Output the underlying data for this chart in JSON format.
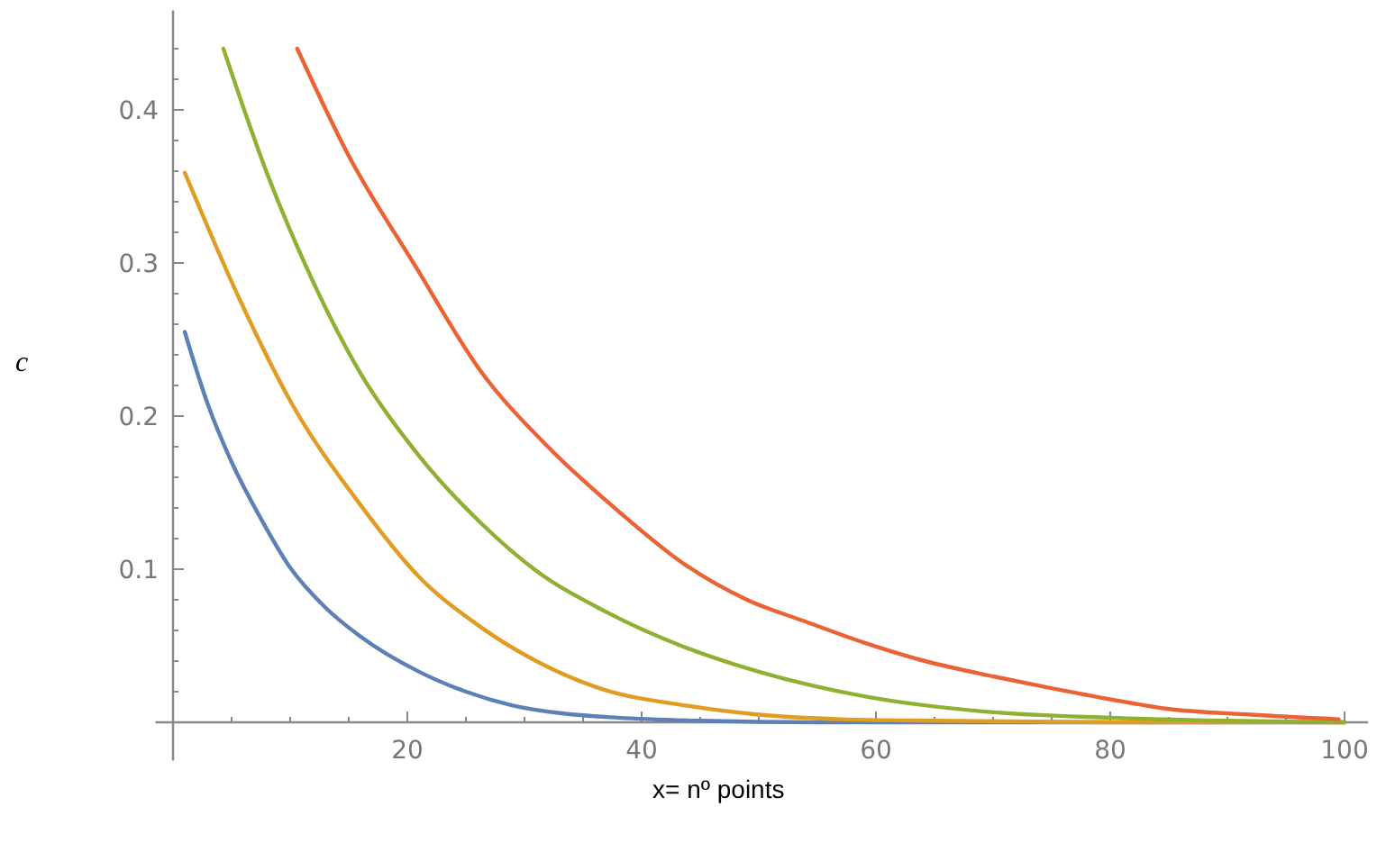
{
  "chart_data": {
    "type": "line",
    "xlabel": "x= nº points",
    "ylabel": "c",
    "xlim": [
      -1.5,
      102
    ],
    "ylim": [
      -0.025,
      0.465
    ],
    "xticks": [
      {
        "value": 5,
        "label": null
      },
      {
        "value": 10,
        "label": null
      },
      {
        "value": 15,
        "label": null
      },
      20,
      {
        "value": 25,
        "label": null
      },
      {
        "value": 30,
        "label": null
      },
      {
        "value": 35,
        "label": null
      },
      40,
      {
        "value": 45,
        "label": null
      },
      {
        "value": 50,
        "label": null
      },
      {
        "value": 55,
        "label": null
      },
      60,
      {
        "value": 65,
        "label": null
      },
      {
        "value": 70,
        "label": null
      },
      {
        "value": 75,
        "label": null
      },
      80,
      {
        "value": 85,
        "label": null
      },
      {
        "value": 90,
        "label": null
      },
      {
        "value": 95,
        "label": null
      },
      100
    ],
    "yticks": [
      {
        "value": 0.02,
        "label": null
      },
      {
        "value": 0.04,
        "label": null
      },
      {
        "value": 0.06,
        "label": null
      },
      {
        "value": 0.08,
        "label": null
      },
      0.1,
      {
        "value": 0.12,
        "label": null
      },
      {
        "value": 0.14,
        "label": null
      },
      {
        "value": 0.16,
        "label": null
      },
      {
        "value": 0.18,
        "label": null
      },
      0.2,
      {
        "value": 0.22,
        "label": null
      },
      {
        "value": 0.24,
        "label": null
      },
      {
        "value": 0.26,
        "label": null
      },
      {
        "value": 0.28,
        "label": null
      },
      0.3,
      {
        "value": 0.32,
        "label": null
      },
      {
        "value": 0.34,
        "label": null
      },
      {
        "value": 0.36,
        "label": null
      },
      {
        "value": 0.38,
        "label": null
      },
      0.4,
      {
        "value": 0.42,
        "label": null
      },
      {
        "value": 0.44,
        "label": null
      }
    ],
    "grid": false,
    "marker": "none",
    "line_style": "solid",
    "series": [
      {
        "color": "#5e81b5",
        "x": [
          1,
          3,
          5,
          7.5,
          10,
          13,
          16,
          21,
          25,
          29,
          33,
          38,
          45,
          55,
          70,
          100
        ],
        "values": [
          0.255,
          0.207,
          0.17,
          0.133,
          0.101,
          0.075,
          0.056,
          0.033,
          0.02,
          0.011,
          0.006,
          0.003,
          0.001,
          0,
          0,
          0
        ]
      },
      {
        "color": "#e19c24",
        "x": [
          1,
          5.7,
          10,
          16,
          21,
          26.3,
          31,
          36.5,
          43.7,
          50,
          57,
          65,
          80,
          100
        ],
        "values": [
          0.359,
          0.276,
          0.21,
          0.142,
          0.095,
          0.062,
          0.04,
          0.022,
          0.011,
          0.005,
          0.002,
          0.001,
          0,
          0
        ]
      },
      {
        "color": "#8fb032",
        "x": [
          4.3,
          8,
          11.4,
          16,
          21,
          26.3,
          31,
          37,
          43.7,
          50,
          59,
          69.3,
          80,
          90,
          100
        ],
        "values": [
          0.44,
          0.359,
          0.297,
          0.228,
          0.174,
          0.13,
          0.099,
          0.072,
          0.049,
          0.033,
          0.017,
          0.007,
          0.003,
          0.001,
          0
        ]
      },
      {
        "color": "#eb6235",
        "x": [
          10.6,
          15,
          20.6,
          26.3,
          32,
          38,
          43.7,
          49,
          53.9,
          59,
          64.2,
          70,
          74.5,
          80,
          84.7,
          92,
          99.5
        ],
        "values": [
          0.44,
          0.37,
          0.299,
          0.229,
          0.18,
          0.138,
          0.103,
          0.08,
          0.066,
          0.052,
          0.04,
          0.03,
          0.023,
          0.015,
          0.009,
          0.005,
          0.002
        ]
      }
    ]
  }
}
